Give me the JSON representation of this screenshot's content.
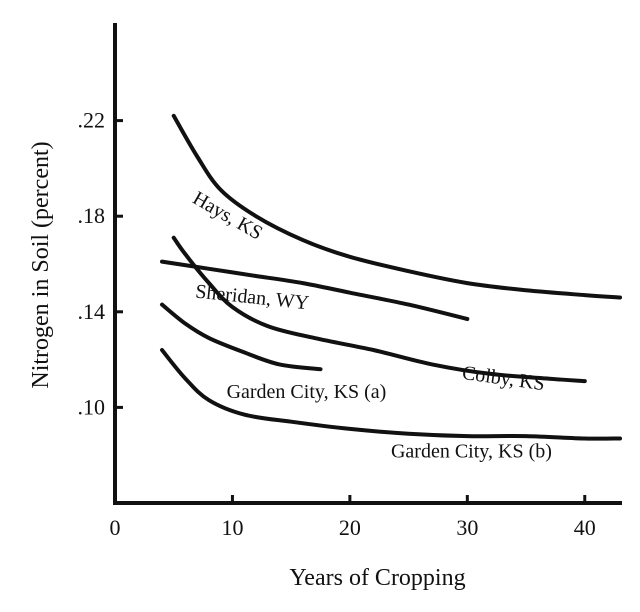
{
  "chart_data": {
    "type": "line",
    "title": "",
    "xlabel": "Years of Cropping",
    "ylabel": "Nitrogen in Soil (percent)",
    "xlim": [
      0,
      43
    ],
    "ylim": [
      0.06,
      0.26
    ],
    "x_ticks": [
      0,
      10,
      20,
      30,
      40
    ],
    "x_tick_labels": [
      "0",
      "10",
      "20",
      "30",
      "40"
    ],
    "y_ticks": [
      0.1,
      0.14,
      0.18,
      0.22
    ],
    "y_tick_labels": [
      ".10",
      ".14",
      ".18",
      ".22"
    ],
    "grid": false,
    "series": [
      {
        "name": "Hays, KS",
        "x": [
          5,
          7,
          9,
          12,
          16,
          20,
          25,
          30,
          35,
          40,
          43
        ],
        "y": [
          0.222,
          0.205,
          0.191,
          0.18,
          0.17,
          0.163,
          0.157,
          0.152,
          0.149,
          0.147,
          0.146
        ]
      },
      {
        "name": "Sheridan, WY",
        "x": [
          4,
          8,
          12,
          16,
          20,
          25,
          30
        ],
        "y": [
          0.161,
          0.158,
          0.155,
          0.152,
          0.148,
          0.143,
          0.137
        ]
      },
      {
        "name": "Colby, KS",
        "x": [
          5,
          6,
          8,
          10,
          13,
          17,
          22,
          27,
          32,
          37,
          40
        ],
        "y": [
          0.171,
          0.164,
          0.152,
          0.142,
          0.134,
          0.129,
          0.124,
          0.118,
          0.114,
          0.112,
          0.111
        ]
      },
      {
        "name": "Garden City, KS (a)",
        "x": [
          4,
          6,
          8,
          11,
          14,
          17.5
        ],
        "y": [
          0.143,
          0.135,
          0.129,
          0.123,
          0.118,
          0.116
        ]
      },
      {
        "name": "Garden City, KS (b)",
        "x": [
          4,
          6,
          8,
          11,
          15,
          20,
          25,
          30,
          35,
          40,
          43
        ],
        "y": [
          0.124,
          0.112,
          0.103,
          0.097,
          0.094,
          0.091,
          0.089,
          0.088,
          0.088,
          0.087,
          0.087
        ]
      }
    ]
  }
}
